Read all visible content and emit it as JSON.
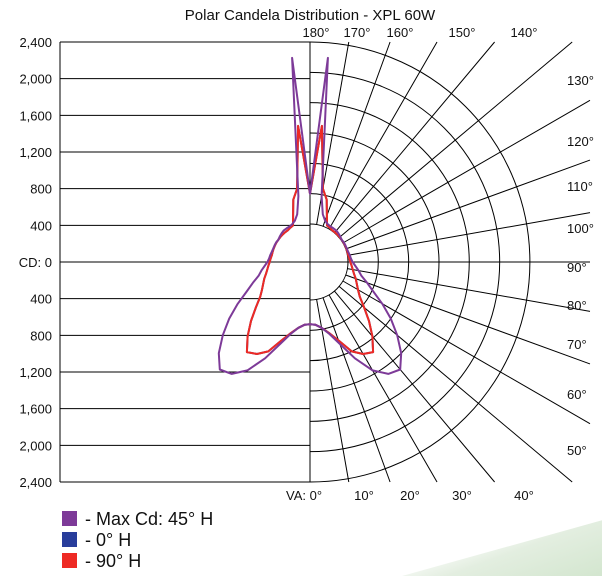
{
  "chart_data": {
    "type": "polar-candela",
    "title": "Polar Candela Distribution - XPL 60W",
    "rlim": [
      0,
      2400
    ],
    "left_ticks": [
      "2,400",
      "2,000",
      "1,600",
      "1,200",
      "800",
      "400",
      "CD: 0",
      "400",
      "800",
      "1,200",
      "1,600",
      "2,000",
      "2,400"
    ],
    "top_angle_labels": [
      "180°",
      "170°",
      "160°",
      "150°",
      "140°"
    ],
    "right_angle_labels": [
      "130°",
      "120°",
      "110°",
      "100°",
      "90°",
      "80°",
      "70°",
      "60°",
      "50°"
    ],
    "bottom_angle_labels": [
      "VA: 0°",
      "10°",
      "20°",
      "30°",
      "40°"
    ],
    "series": [
      {
        "name": "Max Cd: 45° H",
        "color": "#7d3a98",
        "angles": [
          0,
          5,
          10,
          15,
          20,
          25,
          30,
          35,
          40,
          45,
          50,
          55,
          60,
          65,
          70,
          75,
          80,
          85,
          90,
          95,
          100,
          105,
          110,
          115,
          120,
          125,
          130,
          135,
          140,
          145,
          150,
          155,
          160,
          165,
          170,
          175,
          180
        ],
        "values": [
          320,
          330,
          380,
          480,
          650,
          900,
          1150,
          1300,
          1350,
          1200,
          1000,
          800,
          600,
          420,
          300,
          200,
          150,
          100,
          60,
          40,
          30,
          20,
          15,
          15,
          15,
          10,
          20,
          30,
          40,
          40,
          40,
          50,
          80,
          150,
          380,
          2200,
          400
        ]
      },
      {
        "name": "0° H",
        "color": "#283d9b",
        "angles": [
          0,
          5,
          10,
          15,
          20,
          25,
          30,
          35,
          40,
          45,
          50,
          55,
          60,
          65,
          70,
          75,
          80,
          85,
          90,
          95,
          100,
          105,
          110,
          115,
          120,
          125,
          130,
          135,
          140,
          145,
          150,
          155,
          160,
          165,
          170,
          175,
          180
        ],
        "values": [
          320,
          330,
          380,
          470,
          600,
          800,
          900,
          950,
          780,
          600,
          430,
          300,
          230,
          180,
          140,
          100,
          70,
          50,
          30,
          20,
          10,
          10,
          10,
          10,
          10,
          10,
          10,
          10,
          10,
          10,
          20,
          30,
          150,
          350,
          480,
          1300,
          400
        ]
      },
      {
        "name": "90° H",
        "color": "#ee2a24",
        "angles": [
          0,
          5,
          10,
          15,
          20,
          25,
          30,
          35,
          40,
          45,
          50,
          55,
          60,
          65,
          70,
          75,
          80,
          85,
          90,
          95,
          100,
          105,
          110,
          115,
          120,
          125,
          130,
          135,
          140,
          145,
          150,
          155,
          160,
          165,
          170,
          175,
          180
        ],
        "values": [
          320,
          330,
          380,
          470,
          600,
          800,
          900,
          950,
          780,
          600,
          430,
          300,
          230,
          180,
          140,
          100,
          70,
          50,
          30,
          20,
          10,
          10,
          10,
          10,
          10,
          10,
          10,
          10,
          10,
          10,
          20,
          30,
          150,
          350,
          480,
          1300,
          400
        ]
      }
    ],
    "legend": [
      {
        "label": "- Max Cd: 45° H",
        "color": "#7d3a98"
      },
      {
        "label": "- 0° H",
        "color": "#283d9b"
      },
      {
        "label": "- 90° H",
        "color": "#ee2a24"
      }
    ]
  }
}
